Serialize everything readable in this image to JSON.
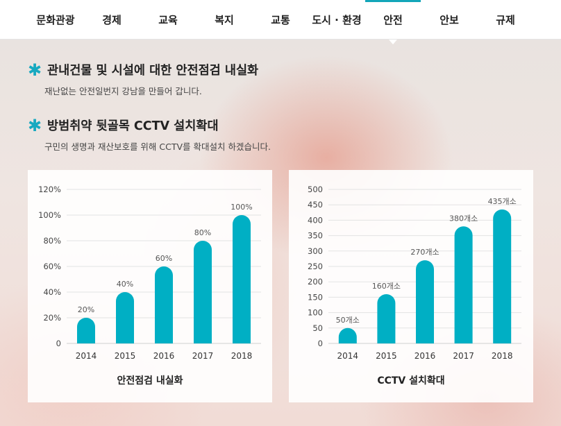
{
  "nav": {
    "items": [
      {
        "label": "문화관광"
      },
      {
        "label": "경제"
      },
      {
        "label": "교육"
      },
      {
        "label": "복지"
      },
      {
        "label": "교통"
      },
      {
        "label": "도시 · 환경"
      },
      {
        "label": "안전"
      },
      {
        "label": "안보"
      },
      {
        "label": "규제"
      }
    ],
    "active_label": "안전",
    "accent_color": "#13a6b9"
  },
  "sections": [
    {
      "title": "관내건물 및 시설에 대한 안전점검 내실화",
      "subtitle": "재난없는 안전일번지 강남을 만들어 갑니다."
    },
    {
      "title": "방범취약 뒷골목 CCTV 설치확대",
      "subtitle": "구민의 생명과 재산보호를 위해 CCTV를 확대설치 하겠습니다."
    }
  ],
  "chart_data": [
    {
      "type": "bar",
      "title": "안전점검 내실화",
      "xlabel": "",
      "ylabel": "",
      "categories": [
        "2014",
        "2015",
        "2016",
        "2017",
        "2018"
      ],
      "values": [
        20,
        40,
        60,
        80,
        100
      ],
      "data_labels": [
        "20%",
        "40%",
        "60%",
        "80%",
        "100%"
      ],
      "yticks": [
        0,
        20,
        40,
        60,
        80,
        100,
        120
      ],
      "ytick_labels": [
        "0",
        "20%",
        "40%",
        "60%",
        "80%",
        "100%",
        "120%"
      ],
      "ylim": [
        0,
        120
      ],
      "grid": true,
      "bar_color": "#00afc4"
    },
    {
      "type": "bar",
      "title": "CCTV 설치확대",
      "xlabel": "",
      "ylabel": "",
      "categories": [
        "2014",
        "2015",
        "2016",
        "2017",
        "2018"
      ],
      "values": [
        50,
        160,
        270,
        380,
        435
      ],
      "data_labels": [
        "50개소",
        "160개소",
        "270개소",
        "380개소",
        "435개소"
      ],
      "yticks": [
        0,
        50,
        100,
        150,
        200,
        250,
        300,
        350,
        400,
        450,
        500
      ],
      "ytick_labels": [
        "0",
        "50",
        "100",
        "150",
        "200",
        "250",
        "300",
        "350",
        "400",
        "450",
        "500"
      ],
      "ylim": [
        0,
        500
      ],
      "grid": true,
      "bar_color": "#00afc4"
    }
  ]
}
